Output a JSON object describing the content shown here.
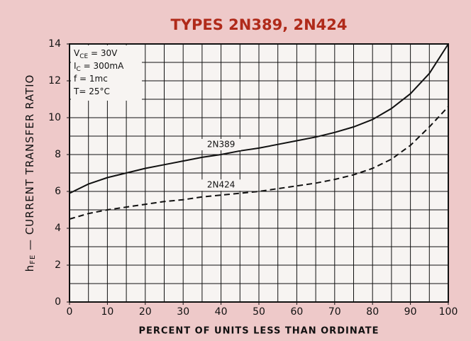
{
  "chart_data": {
    "type": "line",
    "title": "TYPES 2N389, 2N424",
    "xlabel": "PERCENT OF UNITS LESS THAN ORDINATE",
    "ylabel": [
      "h",
      "FE",
      " — CURRENT TRANSFER RATIO"
    ],
    "conditions": [
      [
        "V",
        "CE",
        " = 30V"
      ],
      [
        "I",
        "C",
        " = 300mA"
      ],
      [
        "f = 1mc"
      ],
      [
        "T= 25°C"
      ]
    ],
    "x": [
      0,
      5,
      10,
      15,
      20,
      25,
      30,
      35,
      40,
      45,
      50,
      55,
      60,
      65,
      70,
      75,
      80,
      85,
      90,
      95,
      100
    ],
    "series": [
      {
        "name": "2N389",
        "color": "#111111",
        "dashed": false,
        "values": [
          5.9,
          6.4,
          6.75,
          7.0,
          7.25,
          7.45,
          7.65,
          7.85,
          8.0,
          8.2,
          8.35,
          8.55,
          8.75,
          8.95,
          9.2,
          9.5,
          9.9,
          10.5,
          11.3,
          12.4,
          14
        ]
      },
      {
        "name": "2N424",
        "color": "#111111",
        "dashed": true,
        "values": [
          4.5,
          4.8,
          5.0,
          5.15,
          5.3,
          5.45,
          5.55,
          5.7,
          5.8,
          5.9,
          6.0,
          6.15,
          6.3,
          6.45,
          6.65,
          6.9,
          7.25,
          7.75,
          8.5,
          9.5,
          10.6
        ]
      }
    ],
    "xlim": [
      0,
      100
    ],
    "xticks": [
      0,
      10,
      20,
      30,
      40,
      50,
      60,
      70,
      80,
      90,
      100
    ],
    "ylim": [
      0,
      14
    ],
    "yticks": [
      0,
      2,
      4,
      6,
      8,
      10,
      12,
      14
    ],
    "xgrid": [
      0,
      5,
      10,
      15,
      20,
      25,
      30,
      35,
      40,
      45,
      50,
      55,
      60,
      65,
      70,
      75,
      80,
      85,
      90,
      95,
      100
    ],
    "ygrid": [
      0,
      1,
      2,
      3,
      4,
      5,
      6,
      7,
      8,
      9,
      10,
      11,
      12,
      13,
      14
    ],
    "grid": true
  }
}
